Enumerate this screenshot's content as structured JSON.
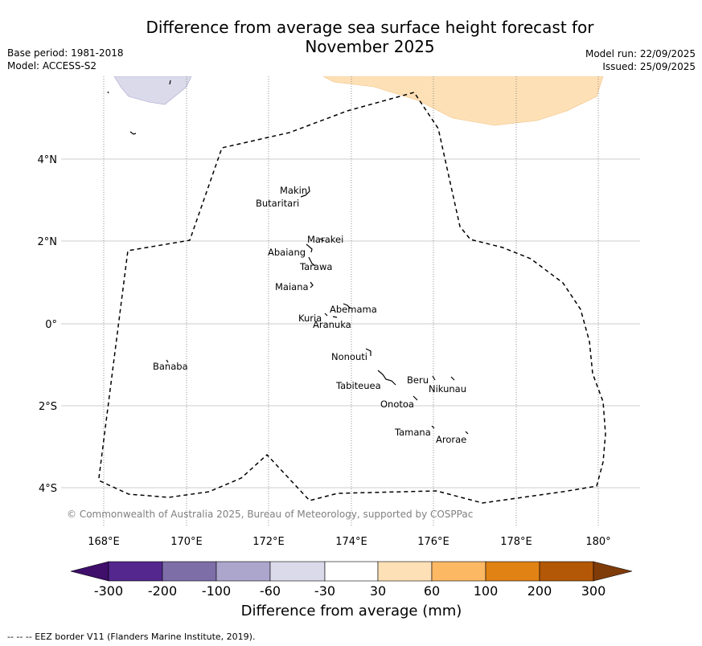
{
  "title_line1": "Difference from average sea surface height forecast for",
  "title_line2": "November 2025",
  "meta_left": {
    "base_period": "Base period: 1981-2018",
    "model": "Model: ACCESS-S2"
  },
  "meta_right": {
    "model_run": "Model run: 22/09/2025",
    "issued": "Issued: 25/09/2025"
  },
  "map": {
    "lon_ticks": [
      "168°E",
      "170°E",
      "172°E",
      "174°E",
      "176°E",
      "178°E",
      "180°"
    ],
    "lat_ticks": [
      "4°N",
      "2°N",
      "0°",
      "2°S",
      "4°S"
    ],
    "islands": [
      "Makin",
      "Butaritari",
      "Marakei",
      "Abaiang",
      "Tarawa",
      "Maiana",
      "Abemama",
      "Kuria",
      "Aranuka",
      "Nonouti",
      "Banaba",
      "Beru",
      "Nikunau",
      "Tabiteuea",
      "Onotoa",
      "Tamana",
      "Arorae"
    ],
    "copyright": "© Commonwealth of Australia 2025, Bureau of Meteorology, supported by COSPPac"
  },
  "colorbar": {
    "colors": [
      "#3f0f6b",
      "#54278f",
      "#7d6ea8",
      "#aca5cc",
      "#dadaeb",
      "#ffffff",
      "#fee0b6",
      "#fdb863",
      "#e08214",
      "#b35806",
      "#7f3b08"
    ],
    "labels": [
      "-300",
      "-200",
      "-100",
      "-60",
      "-30",
      "30",
      "60",
      "100",
      "200",
      "300"
    ],
    "title": "Difference from average (mm)"
  },
  "footnote": "--  --  -- EEZ border V11 (Flanders Marine Institute, 2019)."
}
